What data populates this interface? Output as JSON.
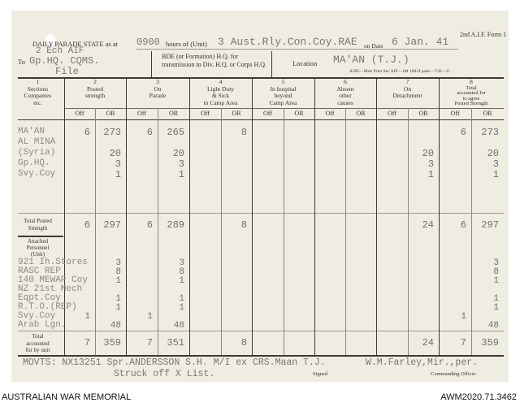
{
  "form": {
    "id": "2nd A.I.F. Form 1",
    "title_prefix": "DAILY PARADE STATE as at",
    "time": "0900",
    "hours_label": "hours of (Unit)",
    "unit": "3 Aust.Rly.Con.Coy.RAE",
    "on_date_label": "on Date",
    "date": "6 Jan. 41",
    "to_label": "To",
    "to_value_1": "2 Ech AIF",
    "to_value_2": "Gp.HQ.   CQMS.",
    "to_value_3": "File",
    "bde_note": "BDE (or Formation) H.Q. for transmission to Div. H.Q. or Corps H.Q.",
    "location_label": "Location",
    "location": "MA'AN (T.J.)",
    "print_note": "A305—Mob Print Sec AIF—1M 100-lf pads—7/41—G"
  },
  "columns": [
    {
      "num": "1",
      "title": "Sections\nCompanies\netc."
    },
    {
      "num": "2",
      "title": "Posted\nstrength"
    },
    {
      "num": "3",
      "title": "On\nParade"
    },
    {
      "num": "4",
      "title": "Light Duty\n& Sick\nin Camp Area"
    },
    {
      "num": "5",
      "title": "In hospital\nbeyond\nCamp Area"
    },
    {
      "num": "6",
      "title": "Absent\nother\ncauses"
    },
    {
      "num": "7",
      "title": "On\nDetachment"
    },
    {
      "num": "8",
      "title": "Total\naccounted for\nto agree\nPosted Strength"
    }
  ],
  "sub_labels": {
    "off": "Off",
    "or": "OR"
  },
  "sections": [
    {
      "label": "MA'AN",
      "values": [
        "6",
        "273",
        "6",
        "265",
        "",
        "8",
        "",
        "",
        "",
        "",
        "",
        "",
        "6",
        "273"
      ]
    },
    {
      "label": "AL MINA",
      "values": [
        "",
        "",
        "",
        "",
        "",
        "",
        "",
        "",
        "",
        "",
        "",
        "",
        "",
        ""
      ]
    },
    {
      "label": "(Syria)",
      "values": [
        "",
        "20",
        "",
        "20",
        "",
        "",
        "",
        "",
        "",
        "",
        "",
        "20",
        "",
        "20"
      ]
    },
    {
      "label": "Gp.HQ.",
      "values": [
        "",
        "3",
        "",
        "3",
        "",
        "",
        "",
        "",
        "",
        "",
        "",
        "3",
        "",
        "3"
      ]
    },
    {
      "label": "Svy.Coy",
      "values": [
        "",
        "1",
        "",
        "1",
        "",
        "",
        "",
        "",
        "",
        "",
        "",
        "1",
        "",
        "1"
      ]
    }
  ],
  "total_posted": {
    "label": "Total Posted\nStrength",
    "values": [
      "6",
      "297",
      "6",
      "289",
      "",
      "8",
      "",
      "",
      "",
      "",
      "",
      "24",
      "6",
      "297"
    ]
  },
  "attached": {
    "label": "Attached\nPersonnel\n(Unit)",
    "rows": [
      {
        "label": "921 Ih.Stores",
        "values": [
          "",
          "3",
          "",
          "3",
          "",
          "",
          "",
          "",
          "",
          "",
          "",
          "",
          "",
          "3"
        ]
      },
      {
        "label": "RASC REP",
        "values": [
          "",
          "8",
          "",
          "8",
          "",
          "",
          "",
          "",
          "",
          "",
          "",
          "",
          "",
          "8"
        ]
      },
      {
        "label": "140 MEWAP Coy",
        "values": [
          "",
          "1",
          "",
          "1",
          "",
          "",
          "",
          "",
          "",
          "",
          "",
          "",
          "",
          "1"
        ]
      },
      {
        "label": "NZ 21st Mech",
        "values": [
          "",
          "",
          "",
          "",
          "",
          "",
          "",
          "",
          "",
          "",
          "",
          "",
          "",
          ""
        ]
      },
      {
        "label": " Eqpt.Coy",
        "values": [
          "",
          "1",
          "",
          "1",
          "",
          "",
          "",
          "",
          "",
          "",
          "",
          "",
          "",
          "1"
        ]
      },
      {
        "label": "R.T.O.(REP)",
        "values": [
          "",
          "1",
          "",
          "1",
          "",
          "",
          "",
          "",
          "",
          "",
          "",
          "",
          "",
          "1"
        ]
      },
      {
        "label": "Svy.Coy",
        "values": [
          "1",
          "",
          "1",
          "",
          "",
          "",
          "",
          "",
          "",
          "",
          "",
          "",
          "1",
          ""
        ]
      },
      {
        "label": "Arab Lgn.",
        "values": [
          "",
          "48",
          "",
          "48",
          "",
          "",
          "",
          "",
          "",
          "",
          "",
          "",
          "",
          "48"
        ]
      }
    ]
  },
  "total_accounted": {
    "label": "Total\naccounted\nfor by unit",
    "values": [
      "7",
      "359",
      "7",
      "351",
      "",
      "8",
      "",
      "",
      "",
      "",
      "",
      "24",
      "7",
      "359"
    ]
  },
  "movements": {
    "line1": "MOVTS: NX13251 Spr.ANDERSSON S.H. M/I ex CRS.Maan T.J.",
    "line2": "Struck off X List.",
    "signed_label": "Signed",
    "signature": "W.M.Farley,Mir.,per.",
    "co_label": "Commanding Officer"
  },
  "footer": {
    "left": "AUSTRALIAN WAR MEMORIAL",
    "right": "AWM2020.71.3462"
  }
}
